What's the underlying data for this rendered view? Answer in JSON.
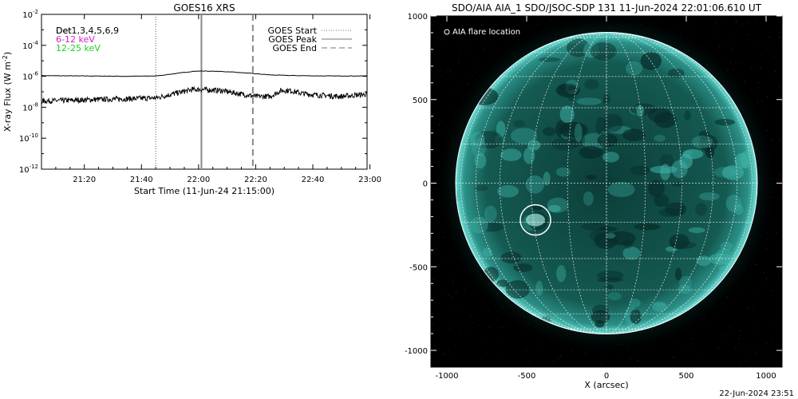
{
  "chart_data": [
    {
      "type": "line",
      "title": "GOES16 XRS",
      "xlabel": "Start Time (11-Jun-24 21:15:00)",
      "ylabel": "X-ray Flux (W m",
      "ylabel_sup": "-2",
      "ylabel_close": ")",
      "x_ticks": [
        "21:20",
        "21:40",
        "22:00",
        "22:20",
        "22:40",
        "23:00"
      ],
      "x_tick_minutes": [
        20,
        40,
        60,
        80,
        100,
        120
      ],
      "x_range_minutes": [
        5,
        119
      ],
      "y_scale": "log",
      "y_ticks": [
        {
          "base": "10",
          "exp": "-2",
          "value": 0.01
        },
        {
          "base": "10",
          "exp": "-4",
          "value": 0.0001
        },
        {
          "base": "10",
          "exp": "-6",
          "value": 1e-06
        },
        {
          "base": "10",
          "exp": "-8",
          "value": 1e-08
        },
        {
          "base": "10",
          "exp": "-10",
          "value": 1e-10
        },
        {
          "base": "10",
          "exp": "-12",
          "value": 1e-12
        }
      ],
      "ylim": [
        1e-12,
        0.01
      ],
      "legend_left": {
        "line1": "Det1,3,4,5,6,9",
        "line1_overlap": "Det",
        "line2": "6-12 keV",
        "line3": "12-25 keV",
        "line2_color": "#d020d0",
        "line3_color": "#20d020"
      },
      "legend_right": [
        {
          "label": "GOES Start",
          "style": "dotted"
        },
        {
          "label": "GOES Peak",
          "style": "solid"
        },
        {
          "label": "GOES End",
          "style": "dashed"
        }
      ],
      "event_lines_minutes": {
        "start": 45,
        "peak": 61,
        "end": 79
      },
      "series": [
        {
          "name": "6-12 keV",
          "x_minutes": [
            5,
            20,
            35,
            45,
            52,
            58,
            61,
            66,
            72,
            79,
            86,
            95,
            105,
            119
          ],
          "values": [
            1.1e-06,
            1.05e-06,
            1e-06,
            1.05e-06,
            1.5e-06,
            2.1e-06,
            2.2e-06,
            2.1e-06,
            1.9e-06,
            1.5e-06,
            1.2e-06,
            1.1e-06,
            1.05e-06,
            1.05e-06
          ]
        },
        {
          "name": "12-25 keV",
          "x_minutes": [
            5,
            15,
            25,
            35,
            45,
            52,
            58,
            61,
            68,
            75,
            80,
            85,
            89,
            92,
            96,
            102,
            110,
            119
          ],
          "values": [
            2.5e-08,
            2.8e-08,
            3.2e-08,
            3.5e-08,
            4e-08,
            8e-08,
            1.4e-07,
            1.4e-07,
            1.2e-07,
            7e-08,
            5e-08,
            5e-08,
            1.2e-07,
            1.2e-07,
            8e-08,
            6e-08,
            5e-08,
            7e-08
          ]
        }
      ]
    },
    {
      "type": "scatter",
      "title": "SDO/AIA AIA_1 SDO/JSOC-SDP 131 11-Jun-2024 22:01:06.610 UT",
      "xlabel": "X (arcsec)",
      "ylabel": "",
      "x_ticks": [
        "-1000",
        "-500",
        "0",
        "500",
        "1000"
      ],
      "y_ticks": [
        "1000",
        "500",
        "0",
        "-500",
        "-1000"
      ],
      "x_tick_values": [
        -1000,
        -500,
        0,
        500,
        1000
      ],
      "y_tick_values": [
        1000,
        500,
        0,
        -500,
        -1000
      ],
      "xlim": [
        -1100,
        1100
      ],
      "ylim": [
        -1100,
        1000
      ],
      "legend": "AIA flare location",
      "flare_location": {
        "x": -445,
        "y": -220
      },
      "solar_radius_arcsec": 945,
      "disk_color": "#0e4a44",
      "grid_color": "#ffffff"
    }
  ],
  "footer_timestamp": "22-Jun-2024 23:51"
}
